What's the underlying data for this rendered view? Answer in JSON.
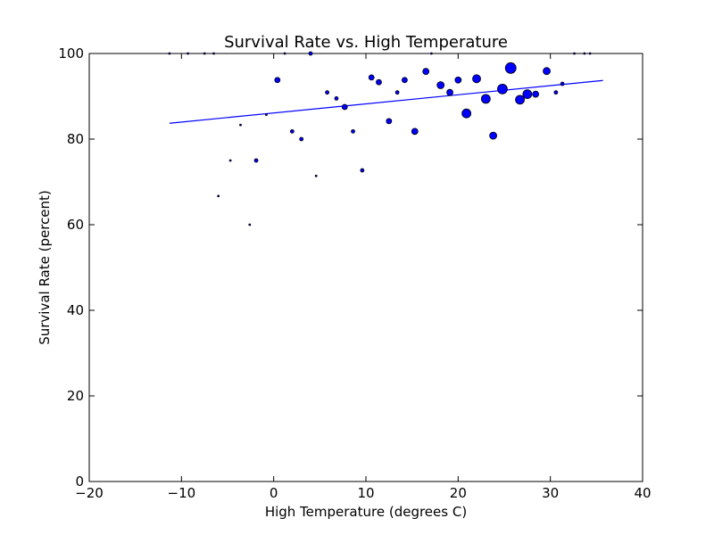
{
  "chart_data": {
    "type": "scatter",
    "title": "Survival Rate vs. High Temperature",
    "xlabel": "High Temperature (degrees C)",
    "ylabel": "Survival Rate (percent)",
    "xlim": [
      -20,
      40
    ],
    "ylim": [
      0,
      100
    ],
    "xticks": [
      -20,
      -10,
      0,
      10,
      20,
      30,
      40
    ],
    "yticks": [
      0,
      20,
      40,
      60,
      80,
      100
    ],
    "xtick_labels": [
      "−20",
      "−10",
      "0",
      "10",
      "20",
      "30",
      "40"
    ],
    "ytick_labels": [
      "0",
      "20",
      "40",
      "60",
      "80",
      "100"
    ],
    "grid": false,
    "legend": "none",
    "marker_color": "#0000ff",
    "line_color": "#0000ff",
    "fit_line": {
      "x": [
        -11.3,
        35.7
      ],
      "y": [
        83.7,
        93.7
      ]
    },
    "points": [
      {
        "x": -11.3,
        "y": 100,
        "size": 1
      },
      {
        "x": -9.3,
        "y": 100,
        "size": 1
      },
      {
        "x": -7.5,
        "y": 100,
        "size": 1
      },
      {
        "x": -6.5,
        "y": 100,
        "size": 1
      },
      {
        "x": -6.0,
        "y": 66.7,
        "size": 1
      },
      {
        "x": -4.7,
        "y": 75.0,
        "size": 1
      },
      {
        "x": -3.6,
        "y": 83.3,
        "size": 1
      },
      {
        "x": -2.6,
        "y": 60.0,
        "size": 1
      },
      {
        "x": -1.9,
        "y": 75.0,
        "size": 2
      },
      {
        "x": -0.8,
        "y": 85.7,
        "size": 1
      },
      {
        "x": 0.4,
        "y": 93.8,
        "size": 3
      },
      {
        "x": 1.2,
        "y": 100,
        "size": 1
      },
      {
        "x": 2.0,
        "y": 81.8,
        "size": 2
      },
      {
        "x": 3.0,
        "y": 80.0,
        "size": 2
      },
      {
        "x": 4.0,
        "y": 100,
        "size": 2
      },
      {
        "x": 4.6,
        "y": 71.4,
        "size": 1
      },
      {
        "x": 5.8,
        "y": 90.9,
        "size": 2
      },
      {
        "x": 6.8,
        "y": 89.5,
        "size": 2
      },
      {
        "x": 7.7,
        "y": 87.5,
        "size": 3
      },
      {
        "x": 8.6,
        "y": 81.8,
        "size": 2
      },
      {
        "x": 9.6,
        "y": 72.7,
        "size": 2
      },
      {
        "x": 10.6,
        "y": 94.4,
        "size": 3
      },
      {
        "x": 11.4,
        "y": 93.3,
        "size": 3
      },
      {
        "x": 12.5,
        "y": 84.2,
        "size": 3
      },
      {
        "x": 13.4,
        "y": 90.9,
        "size": 2
      },
      {
        "x": 14.2,
        "y": 93.8,
        "size": 3
      },
      {
        "x": 15.3,
        "y": 81.8,
        "size": 3.5
      },
      {
        "x": 16.5,
        "y": 95.8,
        "size": 3.5
      },
      {
        "x": 17.1,
        "y": 100,
        "size": 1
      },
      {
        "x": 18.1,
        "y": 92.6,
        "size": 4
      },
      {
        "x": 19.1,
        "y": 90.9,
        "size": 3.5
      },
      {
        "x": 20.0,
        "y": 93.8,
        "size": 3.5
      },
      {
        "x": 20.9,
        "y": 86.0,
        "size": 5
      },
      {
        "x": 22.0,
        "y": 94.1,
        "size": 4.5
      },
      {
        "x": 23.0,
        "y": 89.4,
        "size": 5
      },
      {
        "x": 23.8,
        "y": 80.8,
        "size": 4
      },
      {
        "x": 24.8,
        "y": 91.7,
        "size": 5.5
      },
      {
        "x": 25.7,
        "y": 96.6,
        "size": 6
      },
      {
        "x": 26.7,
        "y": 89.2,
        "size": 5
      },
      {
        "x": 27.5,
        "y": 90.5,
        "size": 5
      },
      {
        "x": 28.4,
        "y": 90.5,
        "size": 3.5
      },
      {
        "x": 29.6,
        "y": 95.9,
        "size": 4
      },
      {
        "x": 30.6,
        "y": 90.9,
        "size": 2
      },
      {
        "x": 31.3,
        "y": 92.9,
        "size": 2
      },
      {
        "x": 32.6,
        "y": 100,
        "size": 1
      },
      {
        "x": 33.7,
        "y": 100,
        "size": 1
      },
      {
        "x": 34.3,
        "y": 100,
        "size": 1
      }
    ]
  }
}
